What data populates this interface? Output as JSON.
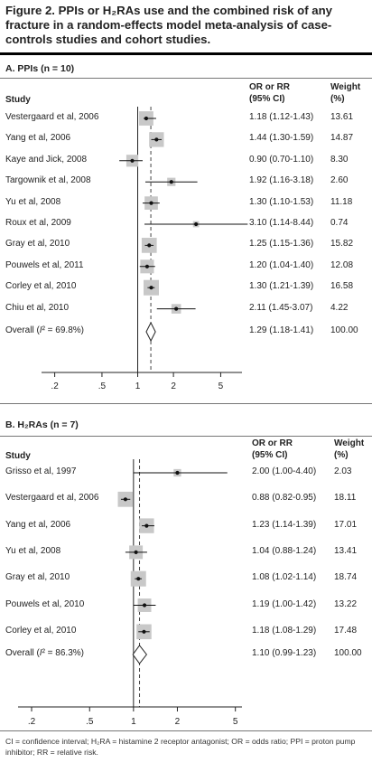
{
  "figure": {
    "title": "Figure 2. PPIs or H₂RAs use and the combined risk of any fracture in a random-effects model meta-analysis of case-controls studies and cohort studies.",
    "footnote": "CI = confidence interval; H₂RA = histamine 2 receptor antagonist; OR = odds ratio; PPI = proton pump inhibitor; RR = relative risk."
  },
  "chart_data": [
    {
      "type": "forest",
      "panel_title": "A. PPIs (n = 10)",
      "columns": {
        "study": "Study",
        "ci_line1": "OR or RR",
        "ci_line2": "(95% CI)",
        "weight_line1": "Weight",
        "weight_line2": "(%)"
      },
      "x_scale": "log",
      "xticks": [
        0.2,
        0.5,
        1,
        2,
        5
      ],
      "xtick_labels": [
        ".2",
        ".5",
        "1",
        "2",
        "5"
      ],
      "null_line": 1,
      "pooled_line": 1.29,
      "studies": [
        {
          "label": "Vestergaard et al, 2006",
          "or": 1.18,
          "lo": 1.12,
          "hi": 1.43,
          "ci_text": "1.18 (1.12-1.43)",
          "weight": "13.61"
        },
        {
          "label": "Yang et al, 2006",
          "or": 1.44,
          "lo": 1.3,
          "hi": 1.59,
          "ci_text": "1.44 (1.30-1.59)",
          "weight": "14.87"
        },
        {
          "label": "Kaye and Jick, 2008",
          "or": 0.9,
          "lo": 0.7,
          "hi": 1.1,
          "ci_text": "0.90 (0.70-1.10)",
          "weight": "8.30"
        },
        {
          "label": "Targownik et al, 2008",
          "or": 1.92,
          "lo": 1.16,
          "hi": 3.18,
          "ci_text": "1.92 (1.16-3.18)",
          "weight": "2.60"
        },
        {
          "label": "Yu et al, 2008",
          "or": 1.3,
          "lo": 1.1,
          "hi": 1.53,
          "ci_text": "1.30 (1.10-1.53)",
          "weight": "11.18"
        },
        {
          "label": "Roux et al, 2009",
          "or": 3.1,
          "lo": 1.14,
          "hi": 8.44,
          "ci_text": "3.10 (1.14-8.44)",
          "weight": "0.74"
        },
        {
          "label": "Gray et al, 2010",
          "or": 1.25,
          "lo": 1.15,
          "hi": 1.36,
          "ci_text": "1.25 (1.15-1.36)",
          "weight": "15.82"
        },
        {
          "label": "Pouwels et al, 2011",
          "or": 1.2,
          "lo": 1.04,
          "hi": 1.4,
          "ci_text": "1.20 (1.04-1.40)",
          "weight": "12.08"
        },
        {
          "label": "Corley et al, 2010",
          "or": 1.3,
          "lo": 1.21,
          "hi": 1.39,
          "ci_text": "1.30 (1.21-1.39)",
          "weight": "16.58"
        },
        {
          "label": "Chiu et al, 2010",
          "or": 2.11,
          "lo": 1.45,
          "hi": 3.07,
          "ci_text": "2.11 (1.45-3.07)",
          "weight": "4.22"
        }
      ],
      "overall": {
        "label_main": "Overall (",
        "label_i2": "I",
        "label_tail": "² = 69.8%)",
        "or": 1.29,
        "lo": 1.18,
        "hi": 1.41,
        "ci_text": "1.29 (1.18-1.41)",
        "weight": "100.00"
      }
    },
    {
      "type": "forest",
      "panel_title": "B. H₂RAs (n = 7)",
      "columns": {
        "study": "Study",
        "ci_line1": "OR or RR",
        "ci_line2": "(95% CI)",
        "weight_line1": "Weight",
        "weight_line2": "(%)"
      },
      "x_scale": "log",
      "xticks": [
        0.2,
        0.5,
        1,
        2,
        5
      ],
      "xtick_labels": [
        ".2",
        ".5",
        "1",
        "2",
        "5"
      ],
      "null_line": 1,
      "pooled_line": 1.1,
      "studies": [
        {
          "label": "Grisso et al, 1997",
          "or": 2.0,
          "lo": 1.0,
          "hi": 4.4,
          "ci_text": "2.00 (1.00-4.40)",
          "weight": "2.03"
        },
        {
          "label": "Vestergaard et al, 2006",
          "or": 0.88,
          "lo": 0.82,
          "hi": 0.95,
          "ci_text": "0.88 (0.82-0.95)",
          "weight": "18.11"
        },
        {
          "label": "Yang et al, 2006",
          "or": 1.23,
          "lo": 1.14,
          "hi": 1.39,
          "ci_text": "1.23 (1.14-1.39)",
          "weight": "17.01"
        },
        {
          "label": "Yu et al, 2008",
          "or": 1.04,
          "lo": 0.88,
          "hi": 1.24,
          "ci_text": "1.04 (0.88-1.24)",
          "weight": "13.41"
        },
        {
          "label": "Gray et al, 2010",
          "or": 1.08,
          "lo": 1.02,
          "hi": 1.14,
          "ci_text": "1.08 (1.02-1.14)",
          "weight": "18.74"
        },
        {
          "label": "Pouwels et al, 2010",
          "or": 1.19,
          "lo": 1.0,
          "hi": 1.42,
          "ci_text": "1.19 (1.00-1.42)",
          "weight": "13.22"
        },
        {
          "label": "Corley et al, 2010",
          "or": 1.18,
          "lo": 1.08,
          "hi": 1.29,
          "ci_text": "1.18 (1.08-1.29)",
          "weight": "17.48"
        }
      ],
      "overall": {
        "label_main": "Overall (",
        "label_i2": "I",
        "label_tail": "² = 86.3%)",
        "or": 1.1,
        "lo": 0.99,
        "hi": 1.23,
        "ci_text": "1.10 (0.99-1.23)",
        "weight": "100.00"
      }
    }
  ]
}
